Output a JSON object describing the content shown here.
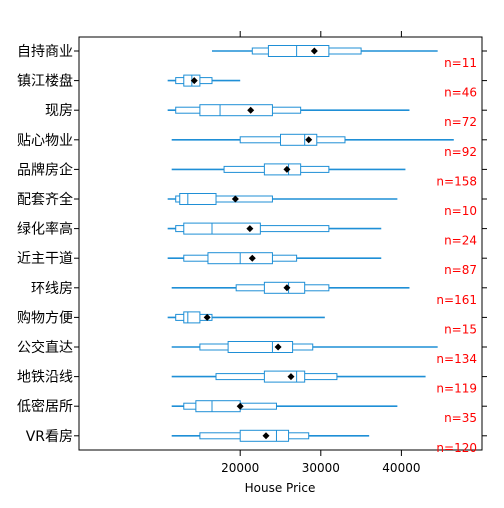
{
  "chart_data": {
    "type": "box",
    "orientation": "horizontal",
    "title": "",
    "xlabel": "House Price",
    "ylabel": "",
    "xlim": [
      0,
      50000
    ],
    "x_ticks": [
      20000,
      30000,
      40000
    ],
    "x_tick_labels": [
      "20000",
      "30000",
      "40000"
    ],
    "grid": false,
    "legend": "none",
    "colors": {
      "box": "#1f8fd6",
      "mean": "#000000",
      "count": "#ff0000",
      "frame": "#000000"
    },
    "series": [
      {
        "label": "自持商业",
        "n_label": "n=11",
        "whisker_low": 16500,
        "box_low": 21500,
        "box_mid_low": 23500,
        "median": 27000,
        "box_mid_high": 31000,
        "box_high": 35000,
        "whisker_high": 44500,
        "mean": 29200
      },
      {
        "label": "镇江楼盘",
        "n_label": "n=46",
        "whisker_low": 11000,
        "box_low": 12000,
        "box_mid_low": 13000,
        "median": 14000,
        "box_mid_high": 15000,
        "box_high": 16500,
        "whisker_high": 20000,
        "mean": 14300
      },
      {
        "label": "现房",
        "n_label": "n=72",
        "whisker_low": 11000,
        "box_low": 12000,
        "box_mid_low": 15000,
        "median": 17500,
        "box_mid_high": 24000,
        "box_high": 27500,
        "whisker_high": 41000,
        "mean": 21300
      },
      {
        "label": "贴心物业",
        "n_label": "n=92",
        "whisker_low": 11500,
        "box_low": 20000,
        "box_mid_low": 25000,
        "median": 28000,
        "box_mid_high": 29500,
        "box_high": 33000,
        "whisker_high": 46500,
        "mean": 28500
      },
      {
        "label": "品牌房企",
        "n_label": "n=158",
        "whisker_low": 11500,
        "box_low": 18000,
        "box_mid_low": 23000,
        "median": 26000,
        "box_mid_high": 27500,
        "box_high": 31000,
        "whisker_high": 40500,
        "mean": 25800
      },
      {
        "label": "配套齐全",
        "n_label": "n=10",
        "whisker_low": 11000,
        "box_low": 12000,
        "box_mid_low": 12500,
        "median": 13500,
        "box_mid_high": 17000,
        "box_high": 24000,
        "whisker_high": 39500,
        "mean": 19400
      },
      {
        "label": "绿化率高",
        "n_label": "n=24",
        "whisker_low": 11000,
        "box_low": 12000,
        "box_mid_low": 13000,
        "median": 16500,
        "box_mid_high": 22500,
        "box_high": 31000,
        "whisker_high": 37500,
        "mean": 21200
      },
      {
        "label": "近主干道",
        "n_label": "n=87",
        "whisker_low": 11000,
        "box_low": 13000,
        "box_mid_low": 16000,
        "median": 20000,
        "box_mid_high": 24000,
        "box_high": 27000,
        "whisker_high": 37500,
        "mean": 21500
      },
      {
        "label": "环线房",
        "n_label": "n=161",
        "whisker_low": 11500,
        "box_low": 19500,
        "box_mid_low": 23000,
        "median": 26000,
        "box_mid_high": 28000,
        "box_high": 31000,
        "whisker_high": 41000,
        "mean": 25800
      },
      {
        "label": "购物方便",
        "n_label": "n=15",
        "whisker_low": 11000,
        "box_low": 12000,
        "box_mid_low": 13000,
        "median": 13500,
        "box_mid_high": 15000,
        "box_high": 16500,
        "whisker_high": 30500,
        "mean": 15900
      },
      {
        "label": "公交直达",
        "n_label": "n=134",
        "whisker_low": 11500,
        "box_low": 15000,
        "box_mid_low": 18500,
        "median": 24000,
        "box_mid_high": 26500,
        "box_high": 29000,
        "whisker_high": 44500,
        "mean": 24700
      },
      {
        "label": "地铁沿线",
        "n_label": "n=119",
        "whisker_low": 11500,
        "box_low": 17000,
        "box_mid_low": 23000,
        "median": 27000,
        "box_mid_high": 28000,
        "box_high": 32000,
        "whisker_high": 43000,
        "mean": 26300
      },
      {
        "label": "低密居所",
        "n_label": "n=35",
        "whisker_low": 11500,
        "box_low": 13000,
        "box_mid_low": 14500,
        "median": 16500,
        "box_mid_high": 20000,
        "box_high": 24500,
        "whisker_high": 39500,
        "mean": 20000
      },
      {
        "label": "VR看房",
        "n_label": "n=120",
        "whisker_low": 11500,
        "box_low": 15000,
        "box_mid_low": 20000,
        "median": 24500,
        "box_mid_high": 26000,
        "box_high": 28500,
        "whisker_high": 36000,
        "mean": 23200
      }
    ]
  }
}
